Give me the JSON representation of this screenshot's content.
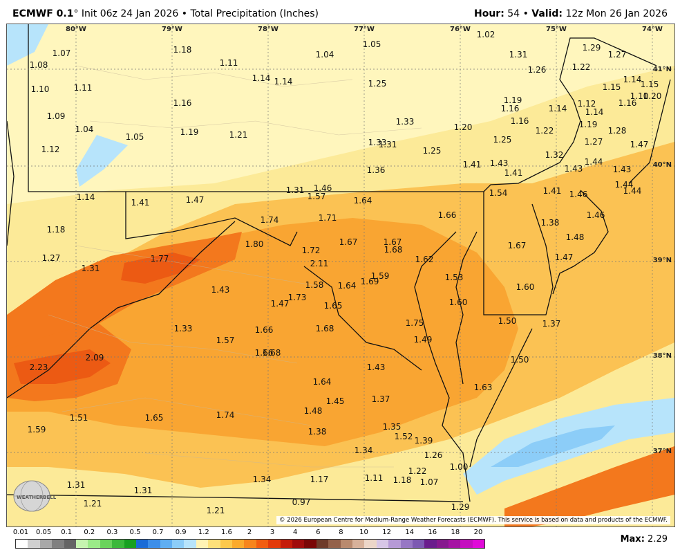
{
  "header": {
    "model": "ECMWF 0.1",
    "init": "Init 06z 24 Jan 2026",
    "product": "Total Precipitation (Inches)",
    "hour_label": "Hour",
    "hour_value": "54",
    "valid_label": "Valid",
    "valid_value": "12z Mon 26 Jan 2026"
  },
  "map": {
    "copyright": "© 2026 European Centre for Medium-Range Weather Forecasts (ECMWF). This service is based on data and products of the ECMWF.",
    "logo_text": "WEATHERBELL",
    "longitude_labels": [
      "80°W",
      "79°W",
      "78°W",
      "77°W",
      "76°W",
      "75°W",
      "74°W"
    ],
    "latitude_labels": [
      "41°N",
      "40°N",
      "39°N",
      "38°N",
      "37°N"
    ],
    "values": [
      "1.07",
      "1.08",
      "1.10",
      "1.11",
      "1.09",
      "1.04",
      "1.12",
      "1.05",
      "1.18",
      "1.11",
      "1.16",
      "1.19",
      "1.21",
      "1.14",
      "1.14",
      "1.04",
      "1.05",
      "1.25",
      "1.33",
      "1.33",
      "1.31",
      "1.36",
      "1.25",
      "1.20",
      "1.02",
      "1.31",
      "1.26",
      "1.22",
      "1.29",
      "1.27",
      "1.19",
      "1.16",
      "1.16",
      "1.14",
      "1.12",
      "1.14",
      "1.22",
      "1.19",
      "1.15",
      "1.14",
      "1.15",
      "1.16",
      "1.10",
      "1.20",
      "1.28",
      "1.47",
      "1.27",
      "1.44",
      "1.43",
      "1.41",
      "1.43",
      "1.32",
      "1.25",
      "1.43",
      "1.41",
      "1.44",
      "1.14",
      "1.41",
      "1.47",
      "1.31",
      "1.46",
      "1.57",
      "1.64",
      "1.54",
      "1.41",
      "1.46",
      "1.46",
      "1.44",
      "1.18",
      "1.74",
      "1.71",
      "1.67",
      "1.66",
      "1.38",
      "1.48",
      "1.27",
      "1.80",
      "1.72",
      "1.67",
      "1.68",
      "1.67",
      "1.47",
      "1.31",
      "1.77",
      "2.11",
      "1.59",
      "1.62",
      "1.53",
      "1.43",
      "1.58",
      "1.64",
      "1.65",
      "1.60",
      "1.47",
      "1.73",
      "1.69",
      "1.60",
      "1.50",
      "1.37",
      "1.33",
      "1.75",
      "1.57",
      "1.66",
      "1.66",
      "1.68",
      "1.49",
      "2.23",
      "2.09",
      "1.68",
      "1.50",
      "1.43",
      "1.63",
      "1.64",
      "1.45",
      "1.37",
      "1.51",
      "1.65",
      "1.74",
      "1.48",
      "1.59",
      "1.38",
      "1.35",
      "1.52",
      "1.39",
      "1.34",
      "1.26",
      "1.22",
      "1.00",
      "1.31",
      "1.34",
      "1.17",
      "1.11",
      "1.18",
      "1.07",
      "1.31",
      "1.21",
      "0.97",
      "1.29",
      "1.21"
    ]
  },
  "legend": {
    "labels": [
      "0.01",
      "0.05",
      "0.1",
      "0.2",
      "0.3",
      "0.5",
      "0.7",
      "0.9",
      "1.2",
      "1.6",
      "2",
      "3",
      "4",
      "6",
      "8",
      "10",
      "12",
      "14",
      "16",
      "18",
      "20"
    ],
    "colors": [
      "#ffffff",
      "#d0d0d0",
      "#a8a8a8",
      "#808080",
      "#646464",
      "#c6f5b0",
      "#9bea88",
      "#6ad35c",
      "#3bb83a",
      "#17a020",
      "#1a6bd6",
      "#3d8ee8",
      "#5faef2",
      "#8ccdf8",
      "#b7e4fb",
      "#fff3b4",
      "#fde07a",
      "#fcc84c",
      "#fbaa2c",
      "#f7851c",
      "#f25d10",
      "#e23a0a",
      "#c41c0a",
      "#a00c0c",
      "#7a0606",
      "#6e3b2a",
      "#93614a",
      "#b98a6e",
      "#d7b19a",
      "#ecd6c8",
      "#d7c6e6",
      "#b69ad6",
      "#9777c4",
      "#7d59b2",
      "#6a1d8c",
      "#86198e",
      "#a514a3",
      "#c40fbf",
      "#e00ad8"
    ],
    "max_label": "Max",
    "max_value": "2.29"
  }
}
